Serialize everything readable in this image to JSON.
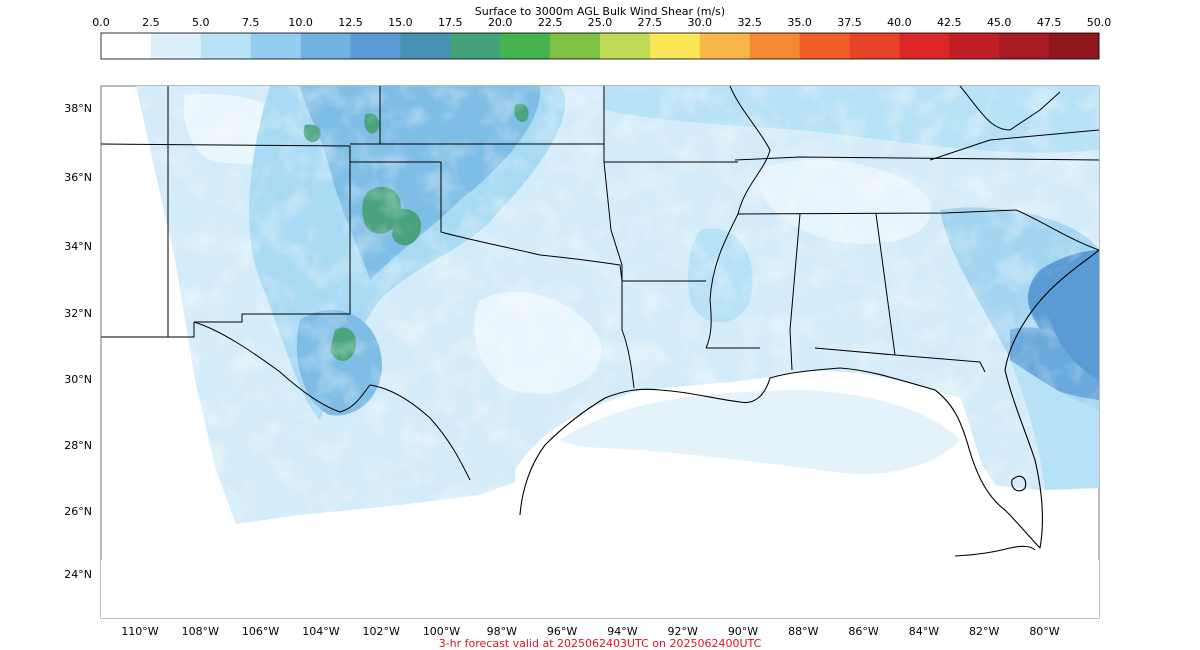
{
  "figure": {
    "title": "Surface to 3000m AGL Bulk Wind Shear (m/s)",
    "forecast_label": "3-hr forecast valid at 2025062403UTC on 2025062400UTC"
  },
  "colorbar": {
    "ticks": [
      "0.0",
      "2.5",
      "5.0",
      "7.5",
      "10.0",
      "12.5",
      "15.0",
      "17.5",
      "20.0",
      "22.5",
      "25.0",
      "27.5",
      "30.0",
      "32.5",
      "35.0",
      "37.5",
      "40.0",
      "42.5",
      "45.0",
      "47.5",
      "50.0"
    ],
    "colors": [
      "#ffffff",
      "#dbf0fb",
      "#b8e2f6",
      "#93cdef",
      "#72b2e1",
      "#5a9bd5",
      "#4791b4",
      "#43a27a",
      "#46b44c",
      "#7fc243",
      "#c0d957",
      "#fbe756",
      "#fab649",
      "#f68a33",
      "#f15f28",
      "#e74327",
      "#db2728",
      "#c11f26",
      "#a81b24",
      "#90161d"
    ]
  },
  "map": {
    "lon_labels": [
      "110°W",
      "108°W",
      "106°W",
      "104°W",
      "102°W",
      "100°W",
      "98°W",
      "96°W",
      "94°W",
      "92°W",
      "90°W",
      "88°W",
      "86°W",
      "84°W",
      "82°W",
      "80°W"
    ],
    "lat_labels": [
      "38°N",
      "36°N",
      "34°N",
      "32°N",
      "30°N",
      "28°N",
      "26°N",
      "24°N"
    ]
  }
}
